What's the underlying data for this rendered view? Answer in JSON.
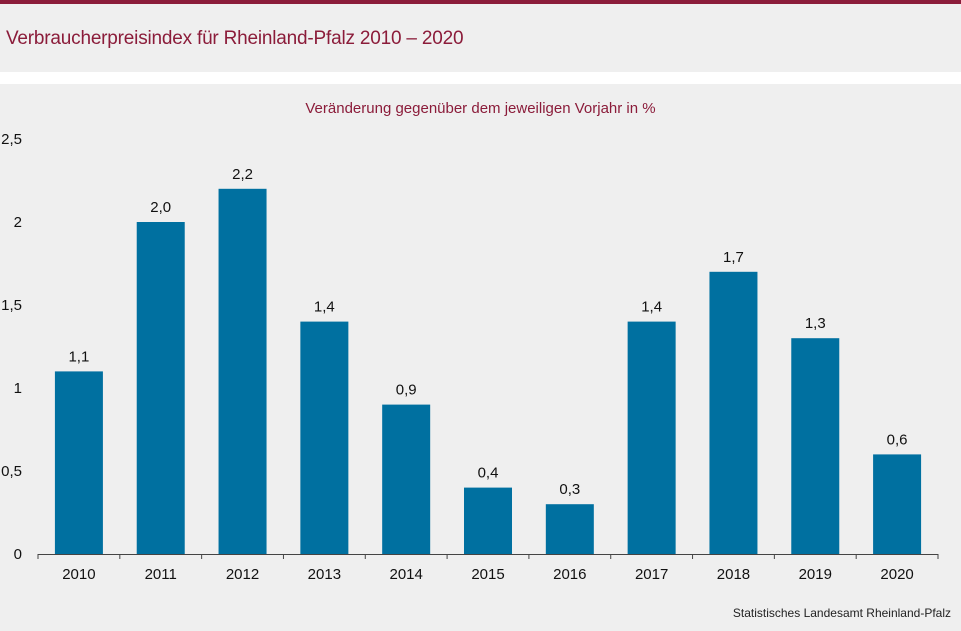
{
  "header": {
    "title": "Verbraucherpreisindex für Rheinland-Pfalz 2010 – 2020"
  },
  "footer": {
    "source": "Statistisches Landesamt Rheinland-Pfalz"
  },
  "colors": {
    "accent": "#8b1c3a",
    "bar": "#0070a0"
  },
  "chart_data": {
    "type": "bar",
    "title": "Veränderung gegenüber dem jeweiligen Vorjahr in %",
    "categories": [
      "2010",
      "2011",
      "2012",
      "2013",
      "2014",
      "2015",
      "2016",
      "2017",
      "2018",
      "2019",
      "2020"
    ],
    "values": [
      1.1,
      2.0,
      2.2,
      1.4,
      0.9,
      0.4,
      0.3,
      1.4,
      1.7,
      1.3,
      0.6
    ],
    "data_labels": [
      "1,1",
      "2,0",
      "2,2",
      "1,4",
      "0,9",
      "0,4",
      "0,3",
      "1,4",
      "1,7",
      "1,3",
      "0,6"
    ],
    "yticks": [
      0,
      0.5,
      1,
      1.5,
      2,
      2.5
    ],
    "ytick_labels": [
      "0",
      "0,5",
      "1",
      "1,5",
      "2",
      "2,5"
    ],
    "ylim": [
      0,
      2.5
    ],
    "xlabel": "",
    "ylabel": "",
    "grid": false,
    "legend": false
  }
}
